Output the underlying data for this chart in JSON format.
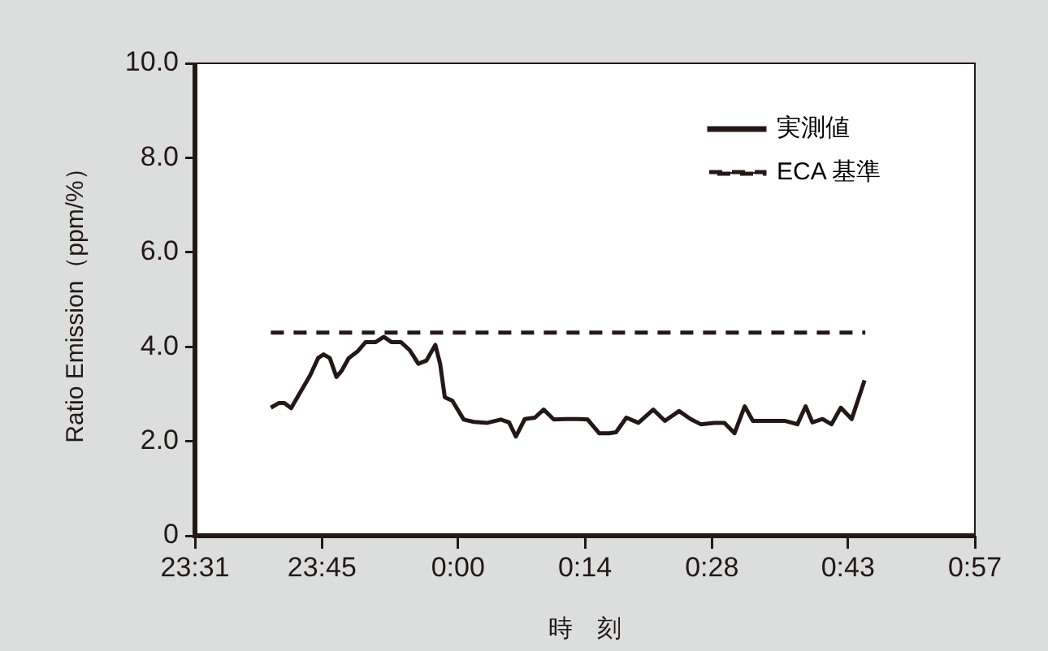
{
  "chart_data": {
    "type": "line",
    "xlabel": "時　刻",
    "ylabel": "Ratio Emission（ppm/%）",
    "xlim": [
      "2000-01-01T23:31",
      "2000-01-02T00:57"
    ],
    "xticks": [
      {
        "value": "2000-01-01T23:31",
        "label": "23:31"
      },
      {
        "value": "2000-01-01T23:45",
        "label": "23:45"
      },
      {
        "value": "2000-01-02T00:00",
        "label": "0:00"
      },
      {
        "value": "2000-01-02T00:14",
        "label": "0:14"
      },
      {
        "value": "2000-01-02T00:28",
        "label": "0:28"
      },
      {
        "value": "2000-01-02T00:43",
        "label": "0:43"
      },
      {
        "value": "2000-01-02T00:57",
        "label": "0:57"
      }
    ],
    "ylim": [
      0,
      10
    ],
    "yticks": [
      0,
      {
        "value": 2,
        "label": "2.0"
      },
      {
        "value": 4,
        "label": "4.0"
      },
      {
        "value": 6,
        "label": "6.0"
      },
      {
        "value": 8,
        "label": "8.0"
      },
      {
        "value": 10,
        "label": "10.0"
      }
    ],
    "legend": "top right",
    "series": [
      {
        "name": "実測値",
        "color": "#231815",
        "line_style": "solid",
        "x": [
          "2000-01-01T23:39:22",
          "2000-01-01T23:40:16",
          "2000-01-01T23:40:51",
          "2000-01-01T23:41:36",
          "2000-01-01T23:42:43",
          "2000-01-01T23:43:41",
          "2000-01-01T23:44:35",
          "2000-01-01T23:45:11",
          "2000-01-01T23:45:52",
          "2000-01-01T23:46:36",
          "2000-01-01T23:47:12",
          "2000-01-01T23:47:57",
          "2000-01-01T23:48:55",
          "2000-01-01T23:49:49",
          "2000-01-01T23:50:56",
          "2000-01-01T23:51:50",
          "2000-01-01T23:52:39",
          "2000-01-01T23:53:42",
          "2000-01-01T23:54:40",
          "2000-01-01T23:55:38",
          "2000-01-01T23:56:32",
          "2000-01-01T23:57:30",
          "2000-01-01T23:58:02",
          "2000-01-01T23:58:33",
          "2000-01-01T23:59:22",
          "2000-01-02T00:00:38",
          "2000-01-02T00:01:46",
          "2000-01-02T00:03:15",
          "2000-01-02T00:04:44",
          "2000-01-02T00:05:38",
          "2000-01-02T00:06:23",
          "2000-01-02T00:07:22",
          "2000-01-02T00:08:29",
          "2000-01-02T00:09:27",
          "2000-01-02T00:10:34",
          "2000-01-02T00:11:50",
          "2000-01-02T00:13:20",
          "2000-01-02T00:14:18",
          "2000-01-02T00:15:34",
          "2000-01-02T00:16:41",
          "2000-01-02T00:17:26",
          "2000-01-02T00:18:34",
          "2000-01-02T00:19:54",
          "2000-01-02T00:21:32",
          "2000-01-02T00:22:49",
          "2000-01-02T00:24:23",
          "2000-01-02T00:25:39",
          "2000-01-02T00:26:46",
          "2000-01-02T00:28:16",
          "2000-01-02T00:29:23",
          "2000-01-02T00:30:30",
          "2000-01-02T00:31:37",
          "2000-01-02T00:32:31",
          "2000-01-02T00:33:52",
          "2000-01-02T00:36:06",
          "2000-01-02T00:37:26",
          "2000-01-02T00:38:20",
          "2000-01-02T00:39:05",
          "2000-01-02T00:40:12",
          "2000-01-02T00:41:11",
          "2000-01-02T00:42:13",
          "2000-01-02T00:43:25",
          "2000-01-02T00:44:50"
        ],
        "values": [
          2.71,
          2.81,
          2.81,
          2.7,
          3.07,
          3.39,
          3.76,
          3.84,
          3.76,
          3.36,
          3.5,
          3.76,
          3.9,
          4.1,
          4.1,
          4.21,
          4.1,
          4.1,
          3.93,
          3.64,
          3.71,
          4.04,
          3.64,
          2.93,
          2.86,
          2.46,
          2.41,
          2.39,
          2.46,
          2.4,
          2.1,
          2.47,
          2.5,
          2.67,
          2.46,
          2.47,
          2.47,
          2.46,
          2.17,
          2.17,
          2.19,
          2.5,
          2.39,
          2.67,
          2.43,
          2.64,
          2.47,
          2.36,
          2.39,
          2.39,
          2.17,
          2.74,
          2.43,
          2.43,
          2.43,
          2.36,
          2.74,
          2.4,
          2.47,
          2.36,
          2.71,
          2.47,
          3.29
        ]
      },
      {
        "name": "ECA 基準",
        "color": "#231815",
        "line_style": "dashed",
        "x": [
          "2000-01-01T23:39:22",
          "2000-01-02T00:44:55"
        ],
        "values": [
          4.3,
          4.3
        ]
      }
    ]
  }
}
